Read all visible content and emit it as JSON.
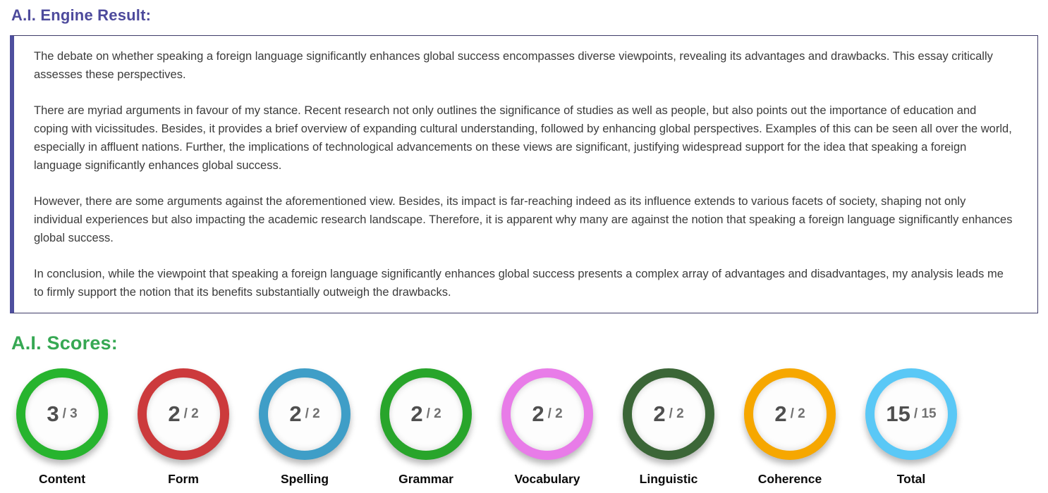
{
  "engine_result": {
    "title": "A.I. Engine Result:"
  },
  "essay": {
    "paragraphs": [
      "The debate on whether speaking a foreign language significantly enhances global success encompasses diverse viewpoints, revealing its advantages and drawbacks. This essay critically assesses these perspectives.",
      "There are myriad arguments in favour of my stance. Recent research not only outlines the significance of studies as well as people, but also points out the importance of education and coping with vicissitudes. Besides, it provides a brief overview of expanding cultural understanding, followed by enhancing global perspectives. Examples of this can be seen all over the world, especially in affluent nations. Further, the implications of technological advancements on these views are significant, justifying widespread support for the idea that speaking a foreign language significantly enhances global success.",
      "However, there are some arguments against the aforementioned view. Besides, its impact is far-reaching indeed as its influence extends to various facets of society, shaping not only individual experiences but also impacting the academic research landscape. Therefore, it is apparent why many are against the notion that speaking a foreign language significantly enhances global success.",
      "In conclusion, while the viewpoint that speaking a foreign language significantly enhances global success presents a complex array of advantages and disadvantages, my analysis leads me to firmly support the notion that its benefits substantially outweigh the drawbacks."
    ]
  },
  "scores": {
    "title": "A.I. Scores:",
    "items": [
      {
        "label": "Content",
        "score": "3",
        "out_of": "/ 3",
        "ring_color": "#27b42e"
      },
      {
        "label": "Form",
        "score": "2",
        "out_of": "/ 2",
        "ring_color": "#cc3a3c"
      },
      {
        "label": "Spelling",
        "score": "2",
        "out_of": "/ 2",
        "ring_color": "#3f9ec7"
      },
      {
        "label": "Grammar",
        "score": "2",
        "out_of": "/ 2",
        "ring_color": "#28a52b"
      },
      {
        "label": "Vocabulary",
        "score": "2",
        "out_of": "/ 2",
        "ring_color": "#e87ce8"
      },
      {
        "label": "Linguistic",
        "score": "2",
        "out_of": "/ 2",
        "ring_color": "#3b6637"
      },
      {
        "label": "Coherence",
        "score": "2",
        "out_of": "/ 2",
        "ring_color": "#f6a700"
      },
      {
        "label": "Total",
        "score": "15",
        "out_of": "/ 15",
        "ring_color": "#5ac8f6"
      }
    ]
  },
  "colors": {
    "heading_purple": "#4d4a9c",
    "heading_green": "#36a853",
    "essay_box_border": "#3e3b68",
    "essay_box_stripe": "#4e4f9e",
    "score_number_text": "#4f4f4f",
    "score_out_of_text": "#717171"
  }
}
